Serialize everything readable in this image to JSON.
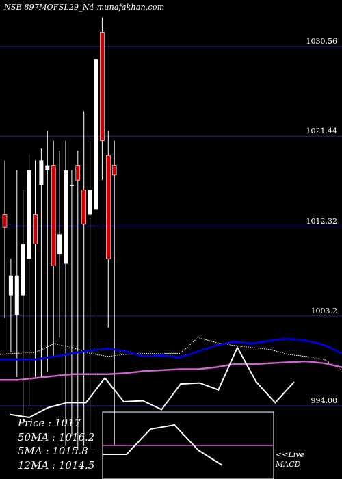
{
  "title": "NSE 897MOFSL29_N4  munafakhan.com",
  "title_display": "NSE 897MOFSL29_N4  munafakhan.com",
  "colors": {
    "background": "#000000",
    "gridline": "#1a1a66",
    "up_candle": "#ffffff",
    "down_candle": "#cc0000",
    "ma_blue": "#0000cc",
    "ma_violet": "#cc66cc",
    "ma_white_dotted": "#ffffff",
    "macd_line": "#ffffff",
    "macd_signal": "#cc66cc"
  },
  "stats": {
    "price": "Price : 1017",
    "ma50": "50MA : 1016.2",
    "ma5": "5MA : 1015.8",
    "ma12": "12MA : 1014.5"
  },
  "macd_label": "<<Live\nMACD",
  "chart_data": {
    "type": "candlestick",
    "title": "NSE 897MOFSL29_N4  munafakhan.com",
    "y_ticks": [
      1030.56,
      1021.44,
      1012.32,
      1003.2,
      994.08
    ],
    "y_tick_labels": [
      "1030.56",
      "1021.44",
      "1012.32",
      "1003.2",
      "994.08"
    ],
    "ylim": [
      989.4,
      1034.5
    ],
    "grid": true,
    "candles": [
      {
        "open": 1013.5,
        "high": 1019.0,
        "low": 1003.0,
        "close": 1012.2
      },
      {
        "open": 1005.3,
        "high": 1009.0,
        "low": 999.5,
        "close": 1007.3
      },
      {
        "open": 1003.3,
        "high": 1018.0,
        "low": 997.0,
        "close": 1007.3
      },
      {
        "open": 1005.3,
        "high": 1016.0,
        "low": 992.3,
        "close": 1010.5
      },
      {
        "open": 1009.0,
        "high": 1019.7,
        "low": 994.0,
        "close": 1018.0
      },
      {
        "open": 1013.5,
        "high": 1019.0,
        "low": 997.0,
        "close": 1010.5
      },
      {
        "open": 1016.5,
        "high": 1020.2,
        "low": 997.0,
        "close": 1019.0
      },
      {
        "open": 1018.0,
        "high": 1022.0,
        "low": 997.5,
        "close": 1018.5
      },
      {
        "open": 1018.5,
        "high": 1021.0,
        "low": 999.0,
        "close": 1008.3
      },
      {
        "open": 1009.5,
        "high": 1020.0,
        "low": 1001.0,
        "close": 1011.5
      },
      {
        "open": 1008.5,
        "high": 1021.0,
        "low": 990.0,
        "close": 1018.0
      },
      {
        "open": 1016.5,
        "high": 1018.0,
        "low": 991.0,
        "close": 1016.5
      },
      {
        "open": 1018.5,
        "high": 1020.0,
        "low": 989.6,
        "close": 1017.0
      },
      {
        "open": 1016.0,
        "high": 1024.0,
        "low": 990.0,
        "close": 1012.5
      },
      {
        "open": 1013.5,
        "high": 1021.0,
        "low": 989.6,
        "close": 1016.0
      },
      {
        "open": 1014.0,
        "high": 1029.0,
        "low": 989.6,
        "close": 1029.3
      },
      {
        "open": 1032.0,
        "high": 1033.5,
        "low": 1017.0,
        "close": 1021.0
      },
      {
        "open": 1019.5,
        "high": 1022.0,
        "low": 1002.0,
        "close": 1009.0
      },
      {
        "open": 1018.5,
        "high": 1021.0,
        "low": 990.0,
        "close": 1017.5
      }
    ],
    "ma_blue": [
      998.8,
      998.8,
      998.8,
      999.1,
      999.4,
      999.7,
      999.9,
      999.6,
      999.1,
      999.2,
      999.0,
      999.6,
      1000.2,
      1000.6,
      1000.4,
      1000.7,
      1000.9,
      1000.7,
      1000.3,
      999.4
    ],
    "ma_violet": [
      996.7,
      996.7,
      996.9,
      997.1,
      997.3,
      997.3,
      997.3,
      997.4,
      997.6,
      997.7,
      997.8,
      997.8,
      998.0,
      998.3,
      998.3,
      998.4,
      998.5,
      998.6,
      998.4,
      998.0
    ],
    "ma_white_dotted": [
      999.3,
      999.4,
      999.5,
      1000.4,
      1000.0,
      999.4,
      999.1,
      999.3,
      999.4,
      999.4,
      999.4,
      1001.0,
      1000.5,
      1000.2,
      1000.0,
      999.8,
      999.3,
      999.1,
      998.8,
      997.7
    ],
    "macd": [
      993.2,
      992.9,
      993.9,
      994.4,
      994.4,
      996.9,
      994.5,
      994.6,
      993.7,
      996.3,
      996.4,
      995.7,
      1000.0,
      996.5,
      994.4,
      996.5
    ]
  }
}
